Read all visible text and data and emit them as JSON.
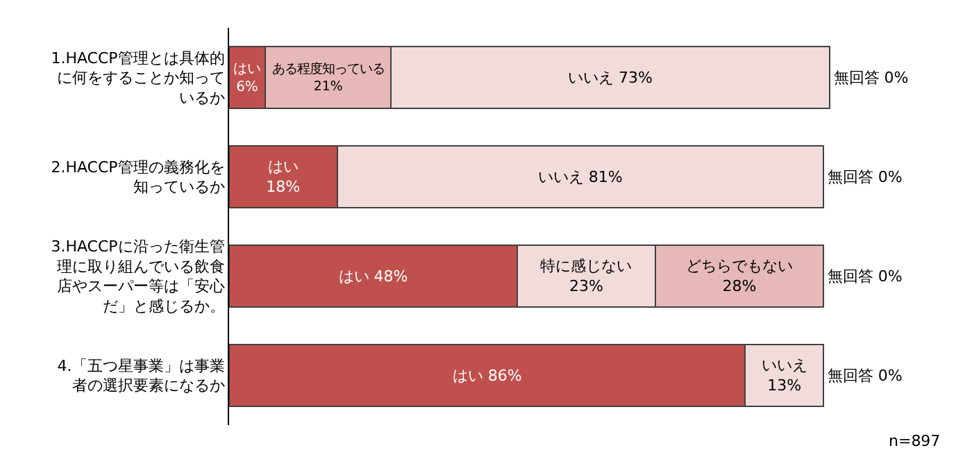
{
  "chart_data": {
    "type": "bar",
    "orientation": "horizontal",
    "stacked": true,
    "tick_labels": "y",
    "categories": [
      "1.HACCP管理とは具体的に何をすることか知っているか",
      "2.HACCP管理の義務化を知っているか",
      "3.HACCPに沿った衛生管理に取り組んでいる飲食店やスーパー等は「安心だ」と感じるか。",
      "4.「五つ星事業」は事業者の選択要素になるか"
    ],
    "series": [
      {
        "color": "#c0504d",
        "values": [
          6,
          18,
          48,
          86
        ],
        "value_labels": [
          "はい 6%",
          "はい 18%",
          "はい 48%",
          "はい 86%"
        ]
      },
      {
        "color": "#e6b9b8",
        "values": [
          21,
          null,
          null,
          null
        ],
        "value_labels": [
          "ある程度知っている 21%",
          null,
          null,
          null
        ]
      },
      {
        "color": "#f2dcdb",
        "values": [
          null,
          null,
          23,
          null
        ],
        "value_labels": [
          null,
          null,
          "特に感じない 23%",
          null
        ]
      },
      {
        "color": "#e6b9b8",
        "values": [
          null,
          null,
          28,
          null
        ],
        "value_labels": [
          null,
          null,
          "どちらでもない 28%",
          null
        ]
      },
      {
        "color": "#f2dcdb",
        "values": [
          73,
          81,
          null,
          13
        ],
        "value_labels": [
          "いいえ 73%",
          "いいえ 81%",
          null,
          "いいえ 13%"
        ]
      },
      {
        "color": "#404040",
        "values": [
          0,
          0,
          0,
          0
        ],
        "value_labels": [
          "無回答 0%",
          "無回答 0%",
          "無回答 0%",
          "無回答 0%"
        ]
      }
    ],
    "annotations": [
      "n=897"
    ]
  }
}
